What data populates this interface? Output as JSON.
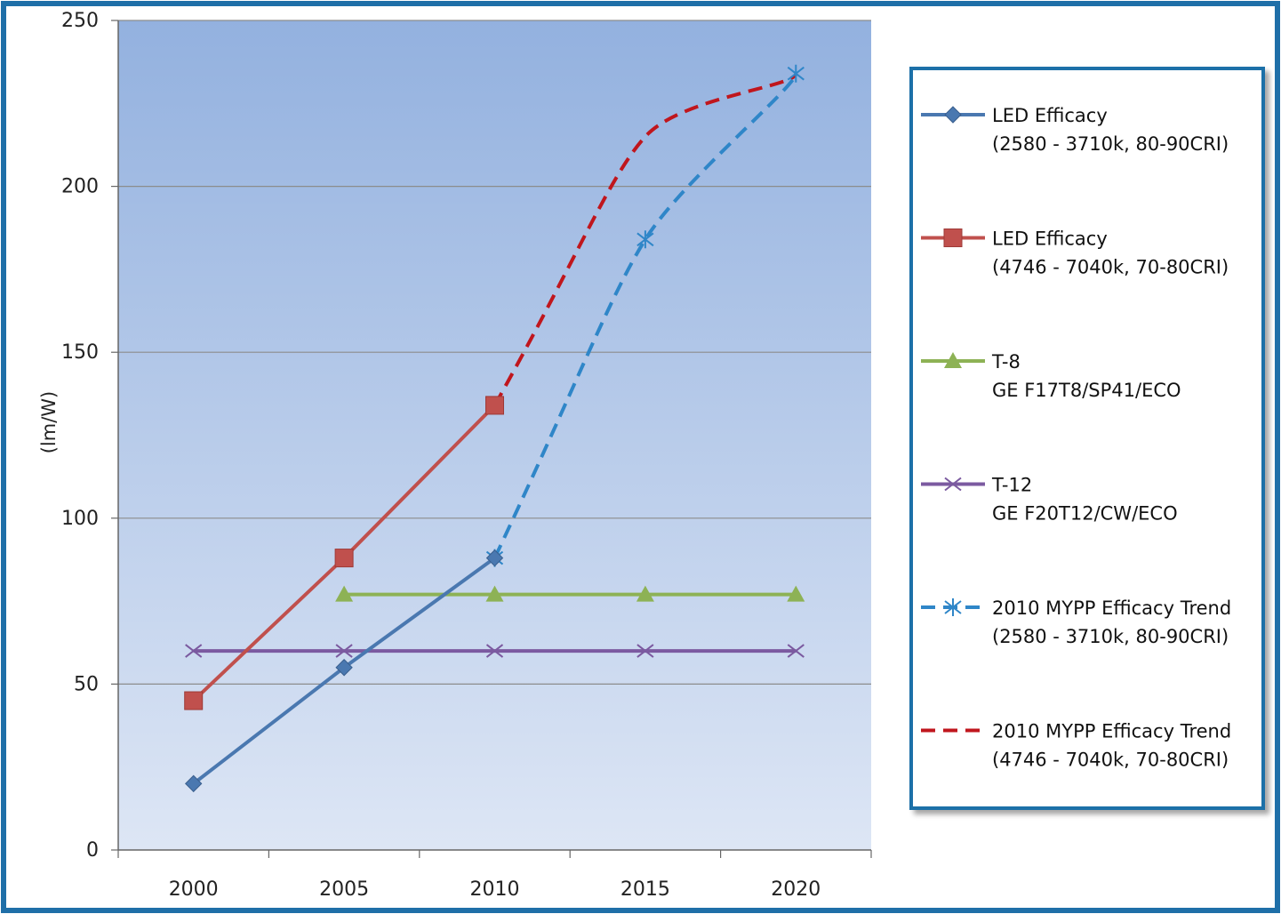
{
  "chart_data": {
    "type": "line",
    "ylabel": "(lm/W)",
    "xlabel": "",
    "ylim": [
      0,
      250
    ],
    "yticks": [
      "0",
      "50",
      "100",
      "150",
      "200",
      "250"
    ],
    "categories": [
      "2000",
      "2005",
      "2010",
      "2015",
      "2020"
    ],
    "grid": true,
    "legend_position": "right",
    "series": [
      {
        "name_lines": [
          "LED Efficacy",
          "(2580 - 3710k, 80-90CRI)"
        ],
        "x": [
          "2000",
          "2005",
          "2010"
        ],
        "values": [
          20,
          55,
          88
        ],
        "color": "#4a78b0",
        "style": "solid",
        "marker": "diamond"
      },
      {
        "name_lines": [
          "LED Efficacy",
          "(4746 - 7040k, 70-80CRI)"
        ],
        "x": [
          "2000",
          "2005",
          "2010"
        ],
        "values": [
          45,
          88,
          134
        ],
        "color": "#c0504d",
        "style": "solid",
        "marker": "square"
      },
      {
        "name_lines": [
          "T-8",
          "GE F17T8/SP41/ECO"
        ],
        "x": [
          "2005",
          "2010",
          "2015",
          "2020"
        ],
        "values": [
          77,
          77,
          77,
          77
        ],
        "color": "#8db255",
        "style": "solid",
        "marker": "triangle"
      },
      {
        "name_lines": [
          "T-12",
          "GE F20T12/CW/ECO"
        ],
        "x": [
          "2000",
          "2005",
          "2010",
          "2015",
          "2020"
        ],
        "values": [
          60,
          60,
          60,
          60,
          60
        ],
        "color": "#7b5aa0",
        "style": "solid",
        "marker": "x"
      },
      {
        "name_lines": [
          "2010 MYPP Efficacy Trend",
          "(2580 - 3710k, 80-90CRI)"
        ],
        "x": [
          "2010",
          "2015",
          "2020"
        ],
        "values": [
          88,
          184,
          234
        ],
        "color": "#2f86c8",
        "style": "dashed",
        "marker": "star"
      },
      {
        "name_lines": [
          "2010 MYPP Efficacy Trend",
          "(4746 - 7040k, 70-80CRI)"
        ],
        "x": [
          "2010",
          "2015",
          "2020"
        ],
        "values": [
          134,
          215,
          234
        ],
        "color": "#c0161d",
        "style": "dashed",
        "marker": "none"
      }
    ]
  }
}
